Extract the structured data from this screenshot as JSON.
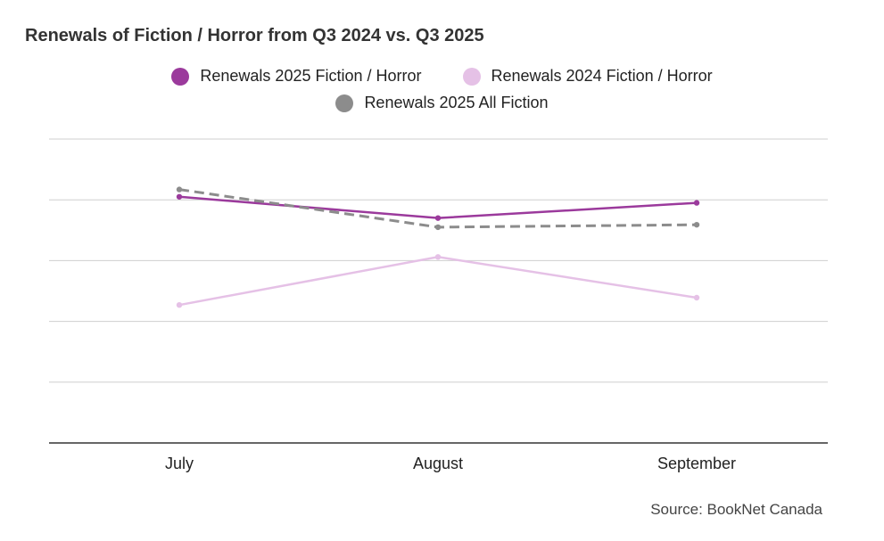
{
  "chart_data": {
    "type": "line",
    "title": "Renewals of Fiction / Horror from Q3 2024 vs. Q3 2025",
    "categories": [
      "July",
      "August",
      "September"
    ],
    "series": [
      {
        "name": "Renewals 2025 Fiction / Horror",
        "values": [
          4.05,
          3.7,
          3.95
        ],
        "color": "#9b3a9c",
        "style": "solid"
      },
      {
        "name": "Renewals 2024 Fiction / Horror",
        "values": [
          2.27,
          3.06,
          2.39
        ],
        "color": "#e5c1e6",
        "style": "solid"
      },
      {
        "name": "Renewals 2025 All Fiction",
        "values": [
          4.17,
          3.55,
          3.59
        ],
        "color": "#8c8c8c",
        "style": "dashed"
      }
    ],
    "ylim": [
      0,
      5
    ],
    "y_gridlines": [
      1,
      2,
      3,
      4,
      5
    ],
    "ytick_labels": "hidden",
    "xlabel": "",
    "ylabel": "",
    "legend_position": "top-center",
    "source": "Source: BookNet Canada"
  }
}
